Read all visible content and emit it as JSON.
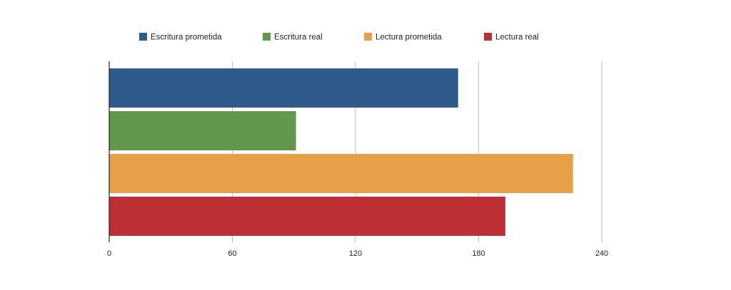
{
  "chart_data": {
    "type": "bar",
    "orientation": "horizontal",
    "title": "",
    "xlabel": "",
    "ylabel": "",
    "xlim": [
      0,
      240
    ],
    "x_ticks": [
      0,
      60,
      120,
      180,
      240
    ],
    "grid": true,
    "legend_position": "top",
    "series": [
      {
        "name": "Escritura prometida",
        "value": 170,
        "color": "#2f5b8c"
      },
      {
        "name": "Escritura real",
        "value": 91,
        "color": "#62984e"
      },
      {
        "name": "Lectura prometida",
        "value": 226,
        "color": "#e6a047"
      },
      {
        "name": "Lectura real",
        "value": 193,
        "color": "#be2e35"
      }
    ]
  }
}
